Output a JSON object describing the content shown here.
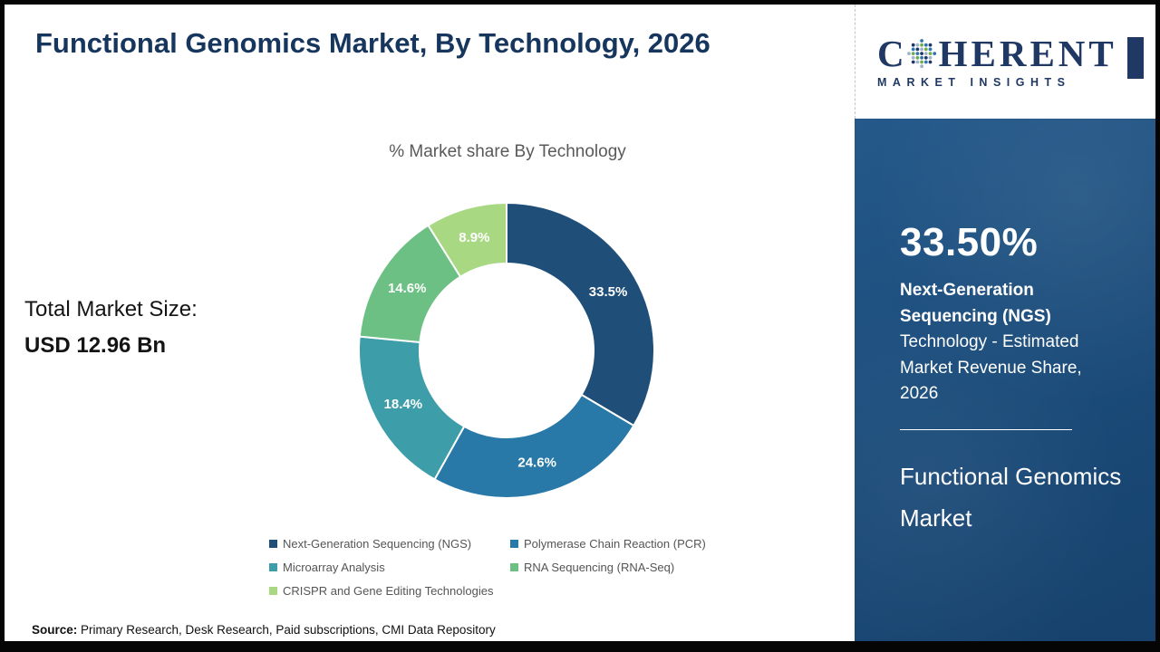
{
  "header": {
    "title": "Functional Genomics Market, By Technology, 2026"
  },
  "total": {
    "label": "Total Market Size:",
    "value": "USD 12.96 Bn"
  },
  "chart_data": {
    "type": "pie",
    "donut": true,
    "title": "% Market share By Technology",
    "categories": [
      "Next-Generation Sequencing (NGS)",
      "Polymerase Chain Reaction (PCR)",
      "Microarray Analysis",
      "RNA Sequencing (RNA-Seq)",
      "CRISPR and Gene Editing Technologies"
    ],
    "values": [
      33.5,
      24.6,
      18.4,
      14.6,
      8.9
    ],
    "slice_labels": [
      "33.5%",
      "24.6%",
      "18.4%",
      "14.6%",
      "8.9%"
    ],
    "colors": [
      "#1F4E79",
      "#2878A8",
      "#3D9DA8",
      "#6CC083",
      "#A9D883"
    ],
    "legend_position": "bottom",
    "start_angle_deg": 0,
    "direction": "clockwise"
  },
  "source": {
    "label": "Source:",
    "text": "Primary Research, Desk Research, Paid subscriptions, CMI Data Repository"
  },
  "sidebar": {
    "logo": {
      "c": "C",
      "rest": "HERENT",
      "sub": "MARKET INSIGHTS"
    },
    "stat_value": "33.50%",
    "stat_bold": "Next-Generation Sequencing (NGS)",
    "stat_rest": "Technology - Estimated Market Revenue Share, 2026",
    "market_name": "Functional Genomics Market"
  }
}
